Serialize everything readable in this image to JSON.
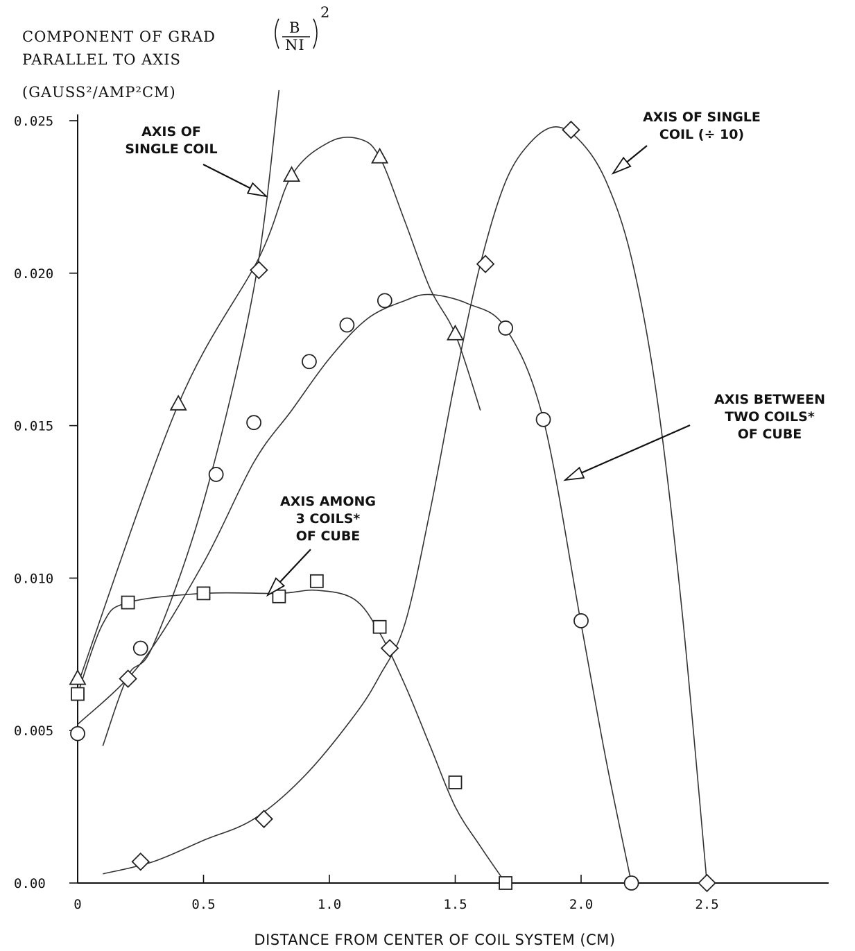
{
  "chart_data": {
    "type": "line",
    "title": "",
    "ylabel_lines": [
      "COMPONENT OF GRAD",
      "PARALLEL TO AXIS",
      "(GAUSS²/AMP²CM)"
    ],
    "ylabel_fraction": {
      "numerator": "B",
      "denominator": "NI",
      "exponent": "2"
    },
    "xlabel": "DISTANCE FROM CENTER OF COIL SYSTEM (CM)",
    "xlim": [
      0,
      2.5
    ],
    "ylim": [
      0,
      0.025
    ],
    "x_ticks": [
      "0",
      "0.5",
      "1.0",
      "1.5",
      "2.0",
      "2.5"
    ],
    "x_tick_values": [
      0,
      0.5,
      1.0,
      1.5,
      2.0,
      2.5
    ],
    "y_ticks": [
      "0.00",
      "0.005",
      "0.010",
      "0.015",
      "0.020",
      "0.025"
    ],
    "y_tick_values": [
      0,
      0.005,
      0.01,
      0.015,
      0.02,
      0.025
    ],
    "grid": false,
    "annotations": [
      {
        "id": "single",
        "lines": [
          "AXIS OF",
          "SINGLE COIL"
        ]
      },
      {
        "id": "single10",
        "lines": [
          "AXIS OF SINGLE",
          "COIL (÷ 10)"
        ]
      },
      {
        "id": "two",
        "lines": [
          "AXIS BETWEEN",
          "TWO COILS*",
          "OF CUBE"
        ]
      },
      {
        "id": "three",
        "lines": [
          "AXIS AMONG",
          "3 COILS*",
          "OF CUBE"
        ]
      }
    ],
    "series": [
      {
        "id": "tri",
        "marker": "triangle",
        "x": [
          0,
          0.4,
          0.72,
          0.85,
          1.0,
          1.12,
          1.2,
          1.3,
          1.4,
          1.5,
          1.6
        ],
        "y": [
          0.0065,
          0.0157,
          0.0205,
          0.0232,
          0.0243,
          0.0244,
          0.0238,
          0.0217,
          0.0195,
          0.018,
          0.0155
        ],
        "marker_x": [
          0,
          0.4,
          0.85,
          1.2,
          1.5
        ],
        "marker_y": [
          0.0067,
          0.0157,
          0.0232,
          0.0238,
          0.018
        ]
      },
      {
        "id": "circ",
        "marker": "circle",
        "x": [
          0,
          0.25,
          0.5,
          0.7,
          0.85,
          1.0,
          1.15,
          1.3,
          1.4,
          1.55,
          1.7,
          1.85,
          2.0,
          2.1,
          2.2
        ],
        "y": [
          0.0052,
          0.0072,
          0.0105,
          0.0138,
          0.0155,
          0.0172,
          0.0185,
          0.0191,
          0.0193,
          0.019,
          0.0182,
          0.0152,
          0.0085,
          0.004,
          0.0
        ],
        "marker_x": [
          0,
          0.25,
          0.55,
          0.7,
          0.92,
          1.07,
          1.22,
          1.7,
          1.85,
          2.0,
          2.2
        ],
        "marker_y": [
          0.0049,
          0.0077,
          0.0134,
          0.0151,
          0.0171,
          0.0183,
          0.0191,
          0.0182,
          0.0152,
          0.0086,
          0.0
        ]
      },
      {
        "id": "sq",
        "marker": "square",
        "x": [
          0,
          0.1,
          0.2,
          0.5,
          0.8,
          0.95,
          1.1,
          1.2,
          1.3,
          1.4,
          1.5,
          1.6,
          1.7
        ],
        "y": [
          0.0062,
          0.0085,
          0.0092,
          0.0095,
          0.0095,
          0.0096,
          0.0093,
          0.0082,
          0.0065,
          0.0045,
          0.0025,
          0.0012,
          0.0
        ],
        "marker_x": [
          0,
          0.2,
          0.5,
          0.8,
          0.95,
          1.2,
          1.5,
          1.7
        ],
        "marker_y": [
          0.0062,
          0.0092,
          0.0095,
          0.0094,
          0.0099,
          0.0084,
          0.0033,
          0.0
        ]
      },
      {
        "id": "dia_small",
        "marker": "diamond",
        "x": [
          0.1,
          0.3,
          0.5,
          0.7,
          0.9,
          1.1,
          1.2,
          1.3,
          1.4,
          1.5,
          1.6,
          1.7,
          1.8,
          1.9,
          2.0,
          2.1,
          2.2,
          2.3,
          2.4,
          2.5
        ],
        "y": [
          0.0003,
          0.0007,
          0.0014,
          0.0021,
          0.0035,
          0.0055,
          0.0068,
          0.0085,
          0.0122,
          0.0165,
          0.0203,
          0.023,
          0.0243,
          0.0248,
          0.0243,
          0.023,
          0.0205,
          0.016,
          0.009,
          0.0
        ],
        "marker_x": [
          0.25,
          0.74,
          1.24,
          1.62,
          1.96,
          2.5
        ],
        "marker_y": [
          0.0007,
          0.0021,
          0.0077,
          0.0203,
          0.0247,
          0.0
        ]
      },
      {
        "id": "dia_large",
        "marker": "diamond",
        "x": [
          0.1,
          0.2,
          0.3,
          0.5,
          0.7,
          0.8
        ],
        "y": [
          0.0045,
          0.0068,
          0.0078,
          0.0125,
          0.0195,
          0.026
        ],
        "marker_x": [
          0.2,
          0.72
        ],
        "marker_y": [
          0.0067,
          0.0201
        ]
      }
    ]
  }
}
